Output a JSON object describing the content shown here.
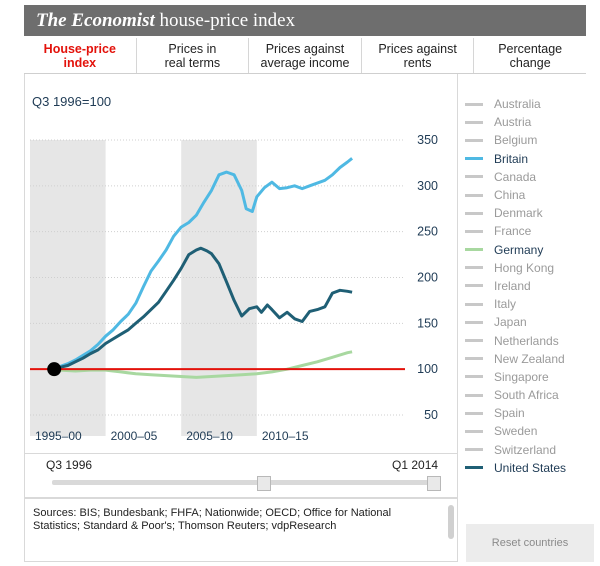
{
  "header": {
    "brand": "The Economist",
    "title_rest": " house-price index"
  },
  "tabs": [
    {
      "line1": "House-price",
      "line2": "index"
    },
    {
      "line1": "Prices in",
      "line2": "real terms"
    },
    {
      "line1": "Prices against",
      "line2": "average income"
    },
    {
      "line1": "Prices against",
      "line2": "rents"
    },
    {
      "line1": "Percentage",
      "line2": "change"
    }
  ],
  "active_tab": 0,
  "index_label": "Q3 1996=100",
  "legend": [
    {
      "name": "Australia",
      "on": false,
      "color": "#c8c8c8"
    },
    {
      "name": "Austria",
      "on": false,
      "color": "#c8c8c8"
    },
    {
      "name": "Belgium",
      "on": false,
      "color": "#c8c8c8"
    },
    {
      "name": "Britain",
      "on": true,
      "color": "#4fb9e3"
    },
    {
      "name": "Canada",
      "on": false,
      "color": "#c8c8c8"
    },
    {
      "name": "China",
      "on": false,
      "color": "#c8c8c8"
    },
    {
      "name": "Denmark",
      "on": false,
      "color": "#c8c8c8"
    },
    {
      "name": "France",
      "on": false,
      "color": "#c8c8c8"
    },
    {
      "name": "Germany",
      "on": true,
      "color": "#a8d8a0"
    },
    {
      "name": "Hong Kong",
      "on": false,
      "color": "#c8c8c8"
    },
    {
      "name": "Ireland",
      "on": false,
      "color": "#c8c8c8"
    },
    {
      "name": "Italy",
      "on": false,
      "color": "#c8c8c8"
    },
    {
      "name": "Japan",
      "on": false,
      "color": "#c8c8c8"
    },
    {
      "name": "Netherlands",
      "on": false,
      "color": "#c8c8c8"
    },
    {
      "name": "New Zealand",
      "on": false,
      "color": "#c8c8c8"
    },
    {
      "name": "Singapore",
      "on": false,
      "color": "#c8c8c8"
    },
    {
      "name": "South Africa",
      "on": false,
      "color": "#c8c8c8"
    },
    {
      "name": "Spain",
      "on": false,
      "color": "#c8c8c8"
    },
    {
      "name": "Sweden",
      "on": false,
      "color": "#c8c8c8"
    },
    {
      "name": "Switzerland",
      "on": false,
      "color": "#c8c8c8"
    },
    {
      "name": "United States",
      "on": true,
      "color": "#1f5f75"
    }
  ],
  "range": {
    "start_label": "Q3 1996",
    "end_label": "Q1 2014",
    "start_fraction": 0.55,
    "end_fraction": 0.99
  },
  "sources": "Sources: BIS; Bundesbank; FHFA; Nationwide; OECD; Office for National Statistics; Standard & Poor's; Thomson Reuters; vdpResearch",
  "reset_label": "Reset countries",
  "chart_data": {
    "type": "line",
    "title": "",
    "xlabel": "",
    "ylabel": "Q3 1996=100",
    "xlim": [
      1995,
      2019.8
    ],
    "ylim": [
      50,
      350
    ],
    "yticks": [
      50,
      100,
      150,
      200,
      250,
      300,
      350
    ],
    "period_bands": [
      {
        "label": "1995–00",
        "from": 1995,
        "to": 2000,
        "shaded": true
      },
      {
        "label": "2000–05",
        "from": 2000,
        "to": 2005,
        "shaded": false
      },
      {
        "label": "2005–10",
        "from": 2005,
        "to": 2010,
        "shaded": true
      },
      {
        "label": "2010–15",
        "from": 2010,
        "to": 2015,
        "shaded": false
      }
    ],
    "baseline": 100,
    "baseline_color": "#e3120b",
    "base_point": {
      "x": 1996.6,
      "y": 100
    },
    "series": [
      {
        "name": "Britain",
        "color": "#4fb9e3",
        "points": [
          [
            1996.6,
            100
          ],
          [
            1997,
            103
          ],
          [
            1997.5,
            106
          ],
          [
            1998,
            110
          ],
          [
            1998.5,
            115
          ],
          [
            1999,
            120
          ],
          [
            1999.5,
            127
          ],
          [
            2000,
            136
          ],
          [
            2000.5,
            143
          ],
          [
            2001,
            152
          ],
          [
            2001.5,
            160
          ],
          [
            2002,
            172
          ],
          [
            2002.5,
            190
          ],
          [
            2003,
            207
          ],
          [
            2003.5,
            218
          ],
          [
            2004,
            230
          ],
          [
            2004.5,
            245
          ],
          [
            2005,
            255
          ],
          [
            2005.5,
            260
          ],
          [
            2006,
            268
          ],
          [
            2006.5,
            282
          ],
          [
            2007,
            295
          ],
          [
            2007.5,
            312
          ],
          [
            2008,
            315
          ],
          [
            2008.5,
            312
          ],
          [
            2009,
            295
          ],
          [
            2009.3,
            275
          ],
          [
            2009.7,
            272
          ],
          [
            2010,
            288
          ],
          [
            2010.5,
            298
          ],
          [
            2011,
            304
          ],
          [
            2011.5,
            297
          ],
          [
            2012,
            298
          ],
          [
            2012.5,
            300
          ],
          [
            2013,
            297
          ],
          [
            2013.5,
            300
          ],
          [
            2014,
            303
          ],
          [
            2014.5,
            306
          ],
          [
            2015,
            312
          ],
          [
            2015.5,
            320
          ],
          [
            2016,
            326
          ],
          [
            2016.3,
            330
          ]
        ]
      },
      {
        "name": "Germany",
        "color": "#a8d8a0",
        "points": [
          [
            1996.6,
            100
          ],
          [
            1997,
            99
          ],
          [
            1998,
            98
          ],
          [
            1999,
            99
          ],
          [
            2000,
            99
          ],
          [
            2001,
            97
          ],
          [
            2002,
            95
          ],
          [
            2003,
            94
          ],
          [
            2004,
            93
          ],
          [
            2005,
            92
          ],
          [
            2006,
            91
          ],
          [
            2007,
            92
          ],
          [
            2008,
            93
          ],
          [
            2009,
            94
          ],
          [
            2010,
            95
          ],
          [
            2011,
            97
          ],
          [
            2012,
            100
          ],
          [
            2013,
            104
          ],
          [
            2014,
            108
          ],
          [
            2015,
            113
          ],
          [
            2016,
            118
          ],
          [
            2016.3,
            119
          ]
        ]
      },
      {
        "name": "United States",
        "color": "#1f5f75",
        "points": [
          [
            1996.6,
            100
          ],
          [
            1997,
            102
          ],
          [
            1997.5,
            104
          ],
          [
            1998,
            108
          ],
          [
            1998.5,
            112
          ],
          [
            1999,
            117
          ],
          [
            1999.5,
            121
          ],
          [
            2000,
            128
          ],
          [
            2000.5,
            133
          ],
          [
            2001,
            138
          ],
          [
            2001.5,
            143
          ],
          [
            2002,
            150
          ],
          [
            2002.5,
            157
          ],
          [
            2003,
            165
          ],
          [
            2003.5,
            173
          ],
          [
            2004,
            185
          ],
          [
            2004.5,
            197
          ],
          [
            2005,
            210
          ],
          [
            2005.5,
            225
          ],
          [
            2006,
            230
          ],
          [
            2006.3,
            232
          ],
          [
            2006.7,
            229
          ],
          [
            2007,
            226
          ],
          [
            2007.5,
            215
          ],
          [
            2008,
            195
          ],
          [
            2008.5,
            175
          ],
          [
            2009,
            158
          ],
          [
            2009.5,
            166
          ],
          [
            2010,
            168
          ],
          [
            2010.3,
            162
          ],
          [
            2010.7,
            170
          ],
          [
            2011,
            165
          ],
          [
            2011.5,
            156
          ],
          [
            2012,
            162
          ],
          [
            2012.5,
            155
          ],
          [
            2013,
            152
          ],
          [
            2013.5,
            163
          ],
          [
            2014,
            165
          ],
          [
            2014.5,
            168
          ],
          [
            2015,
            183
          ],
          [
            2015.5,
            186
          ],
          [
            2016,
            185
          ],
          [
            2016.3,
            184
          ]
        ]
      }
    ]
  }
}
